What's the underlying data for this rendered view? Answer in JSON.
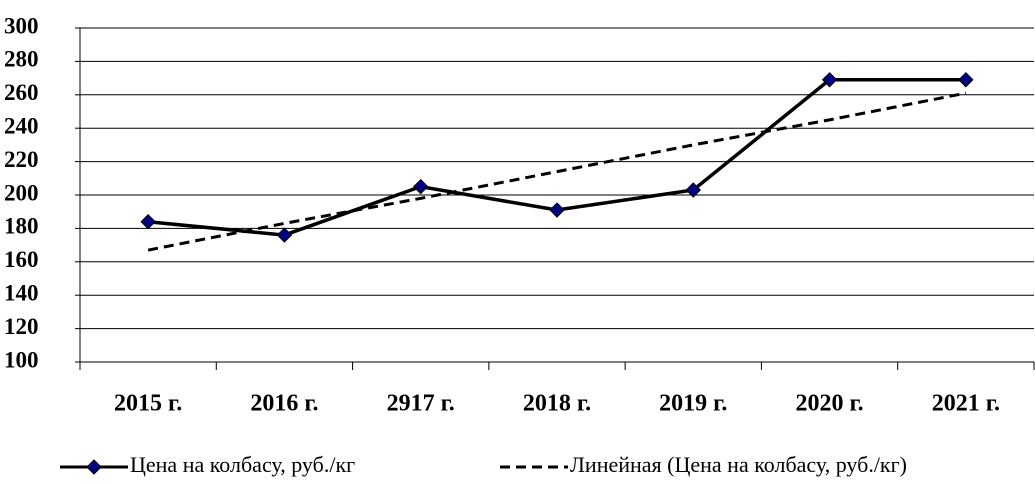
{
  "chart_data": {
    "type": "line",
    "categories": [
      "2015 г.",
      "2016 г.",
      "2917 г.",
      "2018 г.",
      "2019 г.",
      "2020 г.",
      "2021 г."
    ],
    "series": [
      {
        "name": "Цена на колбасу, руб./кг",
        "color": "#000000",
        "marker_color": "#000080",
        "values": [
          184,
          176,
          205,
          191,
          203,
          269,
          269
        ]
      },
      {
        "name": "Линейная (Цена на колбасу, руб./кг)",
        "color": "#000000",
        "dashed": true,
        "values": [
          167,
          183,
          198,
          214,
          230,
          245,
          261
        ]
      }
    ],
    "ylim": [
      100,
      300
    ],
    "yticks": [
      100,
      120,
      140,
      160,
      180,
      200,
      220,
      240,
      260,
      280,
      300
    ],
    "grid": true,
    "legend": "bottom"
  }
}
